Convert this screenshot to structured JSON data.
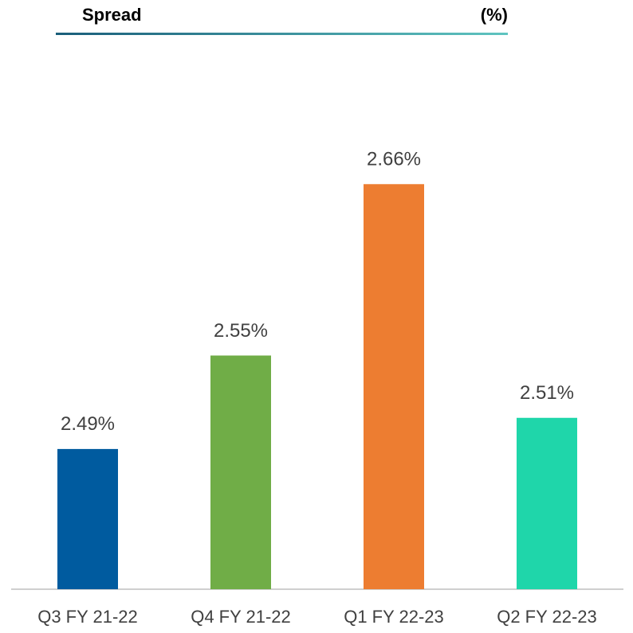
{
  "chart_data": {
    "type": "bar",
    "title": "Spread",
    "subtitle": "(%)",
    "categories": [
      "Q3 FY 21-22",
      "Q4 FY 21-22",
      "Q1 FY 22-23",
      "Q2 FY 22-23"
    ],
    "values": [
      2.49,
      2.55,
      2.66,
      2.51
    ],
    "value_labels": [
      "2.49%",
      "2.55%",
      "2.66%",
      "2.51%"
    ],
    "colors": [
      "#005b9f",
      "#70ad47",
      "#ed7d31",
      "#1fd6aa"
    ],
    "ylim": [
      2.4,
      2.7
    ]
  }
}
